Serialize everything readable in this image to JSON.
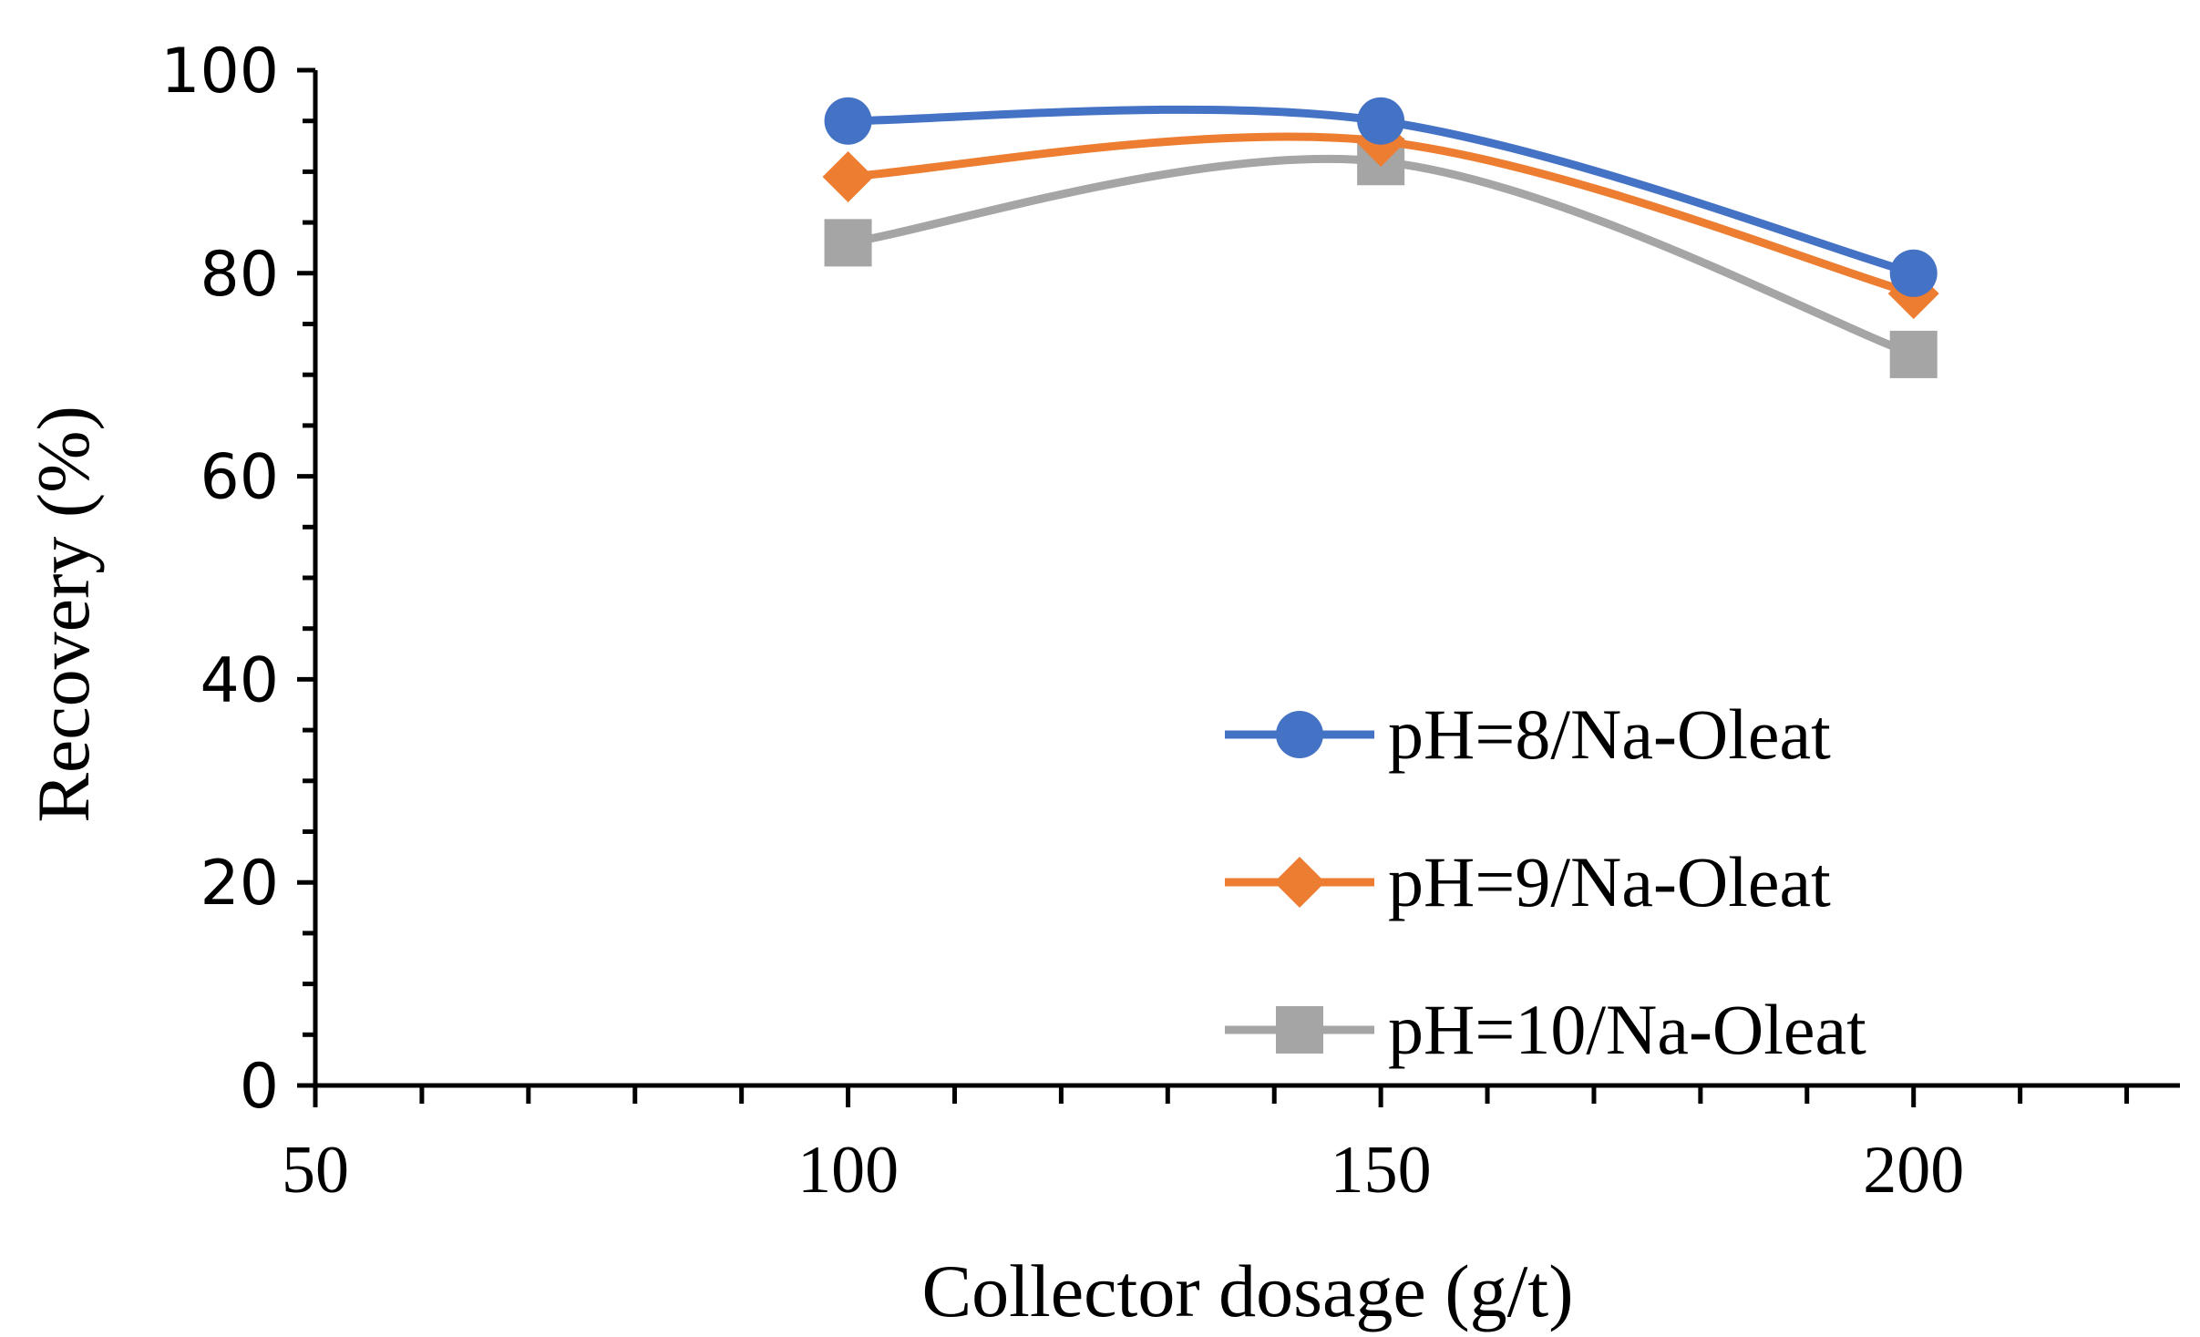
{
  "chart_data": {
    "type": "line",
    "title": "",
    "xlabel": "Collector dosage (g/t)",
    "ylabel": "Recovery (%)",
    "xlim": [
      50,
      225
    ],
    "ylim": [
      0,
      100
    ],
    "x_major_ticks": [
      50,
      100,
      150,
      200
    ],
    "x_minor_step": 10,
    "y_major_ticks": [
      0,
      20,
      40,
      60,
      80,
      100
    ],
    "y_minor_step": 5,
    "grid": false,
    "smooth": true,
    "legend_position": "bottom-right",
    "x": [
      100,
      150,
      200
    ],
    "series": [
      {
        "name": "pH=8/Na-Oleat",
        "marker": "circle",
        "color": "#4472C4",
        "values": [
          95,
          95,
          80
        ]
      },
      {
        "name": "pH=9/Na-Oleat",
        "marker": "diamond",
        "color": "#ED7D31",
        "values": [
          89.5,
          93,
          78
        ]
      },
      {
        "name": "pH=10/Na-Oleat",
        "marker": "square",
        "color": "#A5A5A5",
        "values": [
          83,
          91,
          72
        ]
      }
    ]
  }
}
